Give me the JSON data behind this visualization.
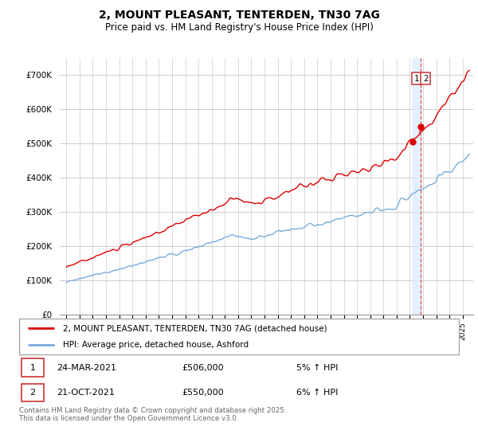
{
  "title": "2, MOUNT PLEASANT, TENTERDEN, TN30 7AG",
  "subtitle": "Price paid vs. HM Land Registry's House Price Index (HPI)",
  "legend_line1": "2, MOUNT PLEASANT, TENTERDEN, TN30 7AG (detached house)",
  "legend_line2": "HPI: Average price, detached house, Ashford",
  "footer": "Contains HM Land Registry data © Crown copyright and database right 2025.\nThis data is licensed under the Open Government Licence v3.0.",
  "annotation1_label": "1",
  "annotation1_date": "24-MAR-2021",
  "annotation1_price": "£506,000",
  "annotation1_hpi": "5% ↑ HPI",
  "annotation2_label": "2",
  "annotation2_date": "21-OCT-2021",
  "annotation2_price": "£550,000",
  "annotation2_hpi": "6% ↑ HPI",
  "red_color": "#dd0000",
  "blue_color": "#7aaadd",
  "vspan_color": "#ddeeff",
  "grid_color": "#cccccc",
  "background_color": "#ffffff",
  "ylim": [
    0,
    750000
  ],
  "yticks": [
    0,
    100000,
    200000,
    300000,
    400000,
    500000,
    600000,
    700000
  ],
  "ytick_labels": [
    "£0",
    "£100K",
    "£200K",
    "£300K",
    "£400K",
    "£500K",
    "£600K",
    "£700K"
  ],
  "vline_x1": 2021.23,
  "vline_x2": 2021.81,
  "marker1_x": 2021.23,
  "marker1_y": 506000,
  "marker2_x": 2021.81,
  "marker2_y": 550000,
  "xlim_left": 1994.5,
  "xlim_right": 2025.8
}
